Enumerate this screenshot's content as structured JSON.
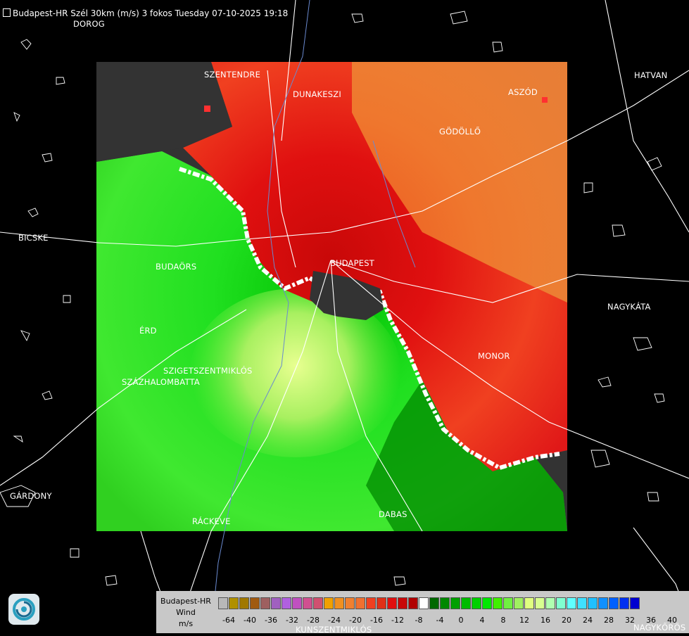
{
  "title": "Budapest-HR Szél 30km (m/s) 3 fokos Tuesday 07-10-2025 19:18",
  "cities": [
    {
      "id": "dorog",
      "name": "DOROG"
    },
    {
      "id": "szentendre",
      "name": "SZENTENDRE"
    },
    {
      "id": "dunakeszi",
      "name": "DUNAKESZI"
    },
    {
      "id": "hatvan",
      "name": "HATVAN"
    },
    {
      "id": "aszod",
      "name": "ASZÓD"
    },
    {
      "id": "godollo",
      "name": "GÖDÖLLŐ"
    },
    {
      "id": "bicske",
      "name": "BICSKE"
    },
    {
      "id": "budapest",
      "name": "BUDAPEST"
    },
    {
      "id": "budaors",
      "name": "BUDAÖRS"
    },
    {
      "id": "nagykata",
      "name": "NAGYKÁTA"
    },
    {
      "id": "erd",
      "name": "ÉRD"
    },
    {
      "id": "monor",
      "name": "MONOR"
    },
    {
      "id": "szigetszentmiklos",
      "name": "SZIGETSZENTMIKLÓS"
    },
    {
      "id": "szazhalombatta",
      "name": "SZÁZHALOMBATTA"
    },
    {
      "id": "gardony",
      "name": "GÁRDONY"
    },
    {
      "id": "dabas",
      "name": "DABAS"
    },
    {
      "id": "rackeve",
      "name": "RÁCKEVE"
    },
    {
      "id": "kunszentmiklos",
      "name": "KUNSZENTMIKLÓS"
    },
    {
      "id": "nagykoros",
      "name": "NAGYKŐRÖS"
    }
  ],
  "legend": {
    "line1": "Budapest-HR",
    "line2": "Wind",
    "line3": "m/s",
    "ticks": [
      "-64",
      "-40",
      "-36",
      "-32",
      "-28",
      "-24",
      "-20",
      "-16",
      "-12",
      "-8",
      "-4",
      "0",
      "4",
      "8",
      "12",
      "16",
      "20",
      "24",
      "28",
      "32",
      "36",
      "40"
    ],
    "colors": [
      "#b8b8b8",
      "#b09000",
      "#a07800",
      "#a05a10",
      "#9e6060",
      "#a060c0",
      "#b060e0",
      "#c050c0",
      "#d05090",
      "#d05070",
      "#f0a000",
      "#f09020",
      "#f08030",
      "#f07030",
      "#f04020",
      "#e03018",
      "#e01010",
      "#c80808",
      "#b00000",
      "#ffffff",
      "#006800",
      "#008800",
      "#00a000",
      "#00bc00",
      "#00d000",
      "#00e800",
      "#40f000",
      "#70f040",
      "#a0f060",
      "#e0ff80",
      "#d8ff90",
      "#b0ffb0",
      "#80ffd0",
      "#60ffff",
      "#40e0ff",
      "#20c0ff",
      "#1090ff",
      "#0060ff",
      "#0030f0",
      "#0000d0"
    ]
  },
  "map": {
    "colors": {
      "nodata": "#333333",
      "outbound_bright": "#e01010",
      "outbound_dark": "#b00000",
      "outbound_strong": "#f08030",
      "inbound_dark": "#008800",
      "inbound_mid": "#00d000",
      "inbound_light": "#70f040",
      "inbound_pale": "#e0ff80",
      "zero": "#ffffff"
    }
  }
}
